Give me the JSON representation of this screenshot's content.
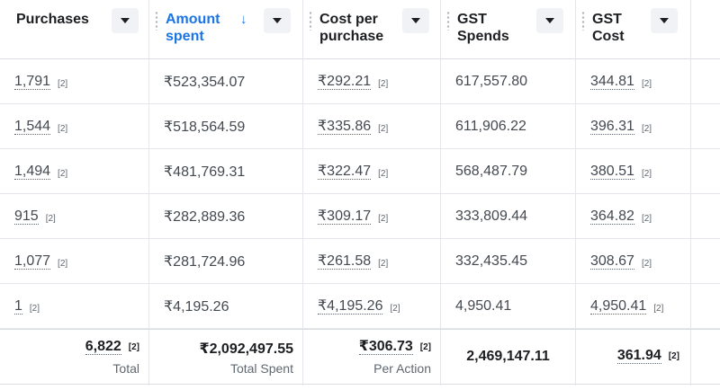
{
  "columns": [
    {
      "label": "Purchases",
      "sorted": false
    },
    {
      "label": "Amount spent",
      "sorted": true,
      "sort_icon": "arrow-down-icon"
    },
    {
      "label": "Cost per purchase",
      "sorted": false
    },
    {
      "label": "GST Spends",
      "sorted": false
    },
    {
      "label": "GST Cost",
      "sorted": false
    }
  ],
  "sort_arrow": "↓",
  "rows": [
    {
      "purchases": "1,791",
      "amount": "₹523,354.07",
      "cpp": "₹292.21",
      "gst_spends": "617,557.80",
      "gst_cost": "344.81"
    },
    {
      "purchases": "1,544",
      "amount": "₹518,564.59",
      "cpp": "₹335.86",
      "gst_spends": "611,906.22",
      "gst_cost": "396.31"
    },
    {
      "purchases": "1,494",
      "amount": "₹481,769.31",
      "cpp": "₹322.47",
      "gst_spends": "568,487.79",
      "gst_cost": "380.51"
    },
    {
      "purchases": "915",
      "amount": "₹282,889.36",
      "cpp": "₹309.17",
      "gst_spends": "333,809.44",
      "gst_cost": "364.82"
    },
    {
      "purchases": "1,077",
      "amount": "₹281,724.96",
      "cpp": "₹261.58",
      "gst_spends": "332,435.45",
      "gst_cost": "308.67"
    },
    {
      "purchases": "1",
      "amount": "₹4,195.26",
      "cpp": "₹4,195.26",
      "gst_spends": "4,950.41",
      "gst_cost": "4,950.41"
    }
  ],
  "footnote": "[2]",
  "totals": {
    "purchases": "6,822",
    "purchases_label": "Total",
    "amount": "₹2,092,497.55",
    "amount_label": "Total Spent",
    "cpp": "₹306.73",
    "cpp_label": "Per Action",
    "gst_spends": "2,469,147.11",
    "gst_cost": "361.94"
  },
  "colors": {
    "accent": "#1b74e4",
    "text": "#1c1e21",
    "muted": "#606770"
  }
}
